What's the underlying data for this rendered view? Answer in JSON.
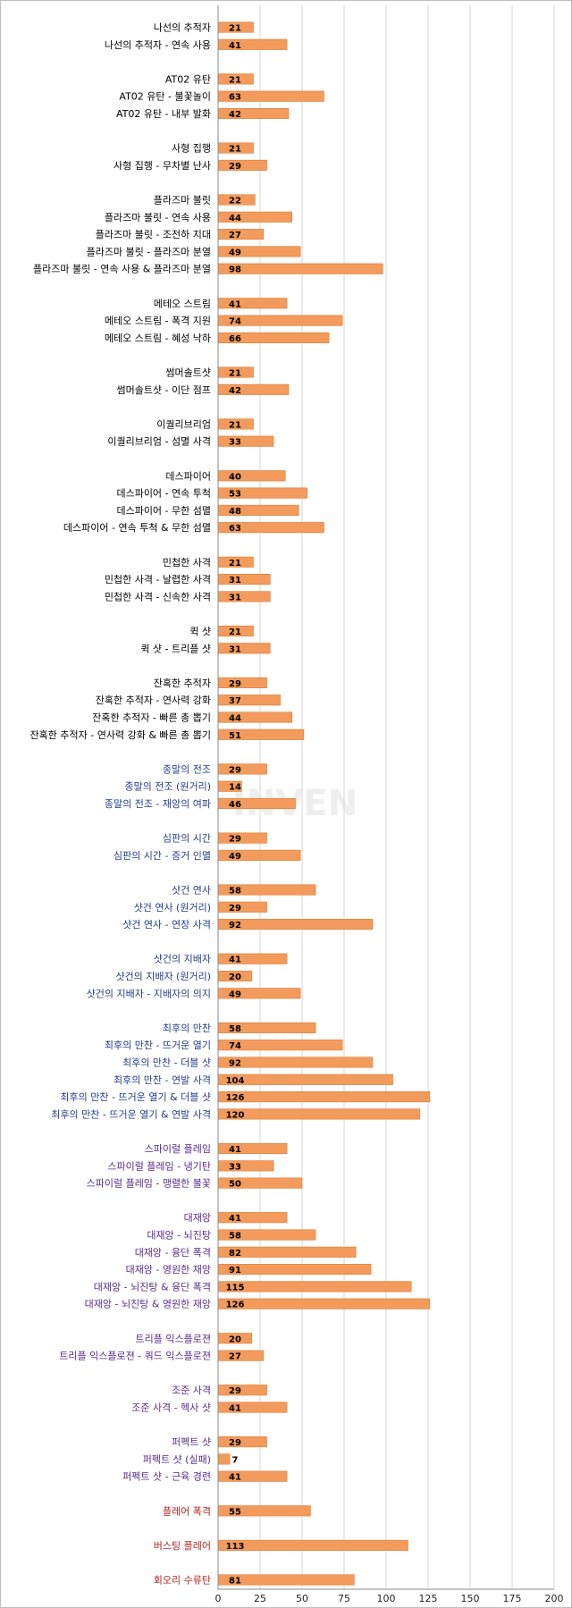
{
  "colors": {
    "bar": "#f29b5c",
    "bar_edge": "#e07a30",
    "grid": "#d4d4d4",
    "axis": "#888888",
    "label_default": "#000000",
    "label_blue": "#1f3d8a",
    "label_purple": "#5a2a8a",
    "label_red": "#b22222",
    "watermark": "#eeeeee"
  },
  "watermark": "INVEN",
  "chart_data": {
    "type": "bar",
    "orientation": "horizontal",
    "xlim": [
      0,
      200
    ],
    "xticks": [
      "0",
      "25",
      "50",
      "75",
      "100",
      "125",
      "150",
      "175",
      "200"
    ],
    "grid": true,
    "groups": [
      {
        "color": "default",
        "items": [
          {
            "label": "나선의 추적자",
            "value": 21
          },
          {
            "label": "나선의 추적자 - 연속 사용",
            "value": 41
          }
        ]
      },
      {
        "color": "default",
        "items": [
          {
            "label": "AT02 유탄",
            "value": 21
          },
          {
            "label": "AT02 유탄 - 불꽃놀이",
            "value": 63
          },
          {
            "label": "AT02 유탄 - 내부 발화",
            "value": 42
          }
        ]
      },
      {
        "color": "default",
        "items": [
          {
            "label": "사형 집행",
            "value": 21
          },
          {
            "label": "사형 집행 - 무차별 난사",
            "value": 29
          }
        ]
      },
      {
        "color": "default",
        "items": [
          {
            "label": "플라즈마 불릿",
            "value": 22
          },
          {
            "label": "플라즈마 불릿 - 연속 사용",
            "value": 44
          },
          {
            "label": "플라즈마 불릿 - 조전하 지대",
            "value": 27
          },
          {
            "label": "플라즈마 불릿 - 플라즈마 분열",
            "value": 49
          },
          {
            "label": "플라즈마 불릿 - 연속 사용 & 플라즈마 분열",
            "value": 98
          }
        ]
      },
      {
        "color": "default",
        "items": [
          {
            "label": "메테오 스트림",
            "value": 41
          },
          {
            "label": "메테오 스트림 - 폭격 지원",
            "value": 74
          },
          {
            "label": "메테오 스트림 - 혜성 낙하",
            "value": 66
          }
        ]
      },
      {
        "color": "default",
        "items": [
          {
            "label": "썸머솔트샷",
            "value": 21
          },
          {
            "label": "썸머솔트샷 - 이단 점프",
            "value": 42
          }
        ]
      },
      {
        "color": "default",
        "items": [
          {
            "label": "이퀄리브리엄",
            "value": 21
          },
          {
            "label": "이퀄리브리엄 - 섬멸 사격",
            "value": 33
          }
        ]
      },
      {
        "color": "default",
        "items": [
          {
            "label": "데스파이어",
            "value": 40
          },
          {
            "label": "데스파이어 - 연속 투척",
            "value": 53
          },
          {
            "label": "데스파이어 - 무한 섬멸",
            "value": 48
          },
          {
            "label": "데스파이어 - 연속 투척 & 무한 섬멸",
            "value": 63
          }
        ]
      },
      {
        "color": "default",
        "items": [
          {
            "label": "민첩한 사격",
            "value": 21
          },
          {
            "label": "민첩한 사격 - 날렵한 사격",
            "value": 31
          },
          {
            "label": "민첩한 사격 - 신속한 사격",
            "value": 31
          }
        ]
      },
      {
        "color": "default",
        "items": [
          {
            "label": "퀵 샷",
            "value": 21
          },
          {
            "label": "퀵 샷 - 트리플 샷",
            "value": 31
          }
        ]
      },
      {
        "color": "default",
        "items": [
          {
            "label": "잔혹한 추적자",
            "value": 29
          },
          {
            "label": "잔혹한 추적자 - 연사력 강화",
            "value": 37
          },
          {
            "label": "잔혹한 추적자 - 빠른 총 뽑기",
            "value": 44
          },
          {
            "label": "잔혹한 추적자 - 연사력 강화 & 빠른 총 뽑기",
            "value": 51
          }
        ]
      },
      {
        "color": "blue",
        "items": [
          {
            "label": "종말의 전조",
            "value": 29
          },
          {
            "label": "종말의 전조 (원거리)",
            "value": 14
          },
          {
            "label": "종말의 전조 - 재앙의 여파",
            "value": 46
          }
        ]
      },
      {
        "color": "blue",
        "items": [
          {
            "label": "심판의 시간",
            "value": 29
          },
          {
            "label": "심판의 시간 - 증거 인멸",
            "value": 49
          }
        ]
      },
      {
        "color": "blue",
        "items": [
          {
            "label": "샷건 연사",
            "value": 58
          },
          {
            "label": "샷건 연사 (원거리)",
            "value": 29
          },
          {
            "label": "샷건 연사 - 연장 사격",
            "value": 92
          }
        ]
      },
      {
        "color": "blue",
        "items": [
          {
            "label": "샷건의 지배자",
            "value": 41
          },
          {
            "label": "샷건의 지배자 (원거리)",
            "value": 20
          },
          {
            "label": "샷건의 지배자 - 지배자의 의지",
            "value": 49
          }
        ]
      },
      {
        "color": "blue",
        "items": [
          {
            "label": "최후의 만찬",
            "value": 58
          },
          {
            "label": "최후의 만찬 - 뜨거운 열기",
            "value": 74
          },
          {
            "label": "최후의 만찬 - 더블 샷",
            "value": 92
          },
          {
            "label": "최후의 만찬 - 연발 사격",
            "value": 104
          },
          {
            "label": "최후의 만찬 - 뜨거운 열기 & 더블 샷",
            "value": 126
          },
          {
            "label": "최후의 만찬 - 뜨거운 열기 & 연발 사격",
            "value": 120
          }
        ]
      },
      {
        "color": "purple",
        "items": [
          {
            "label": "스파이럴 플레임",
            "value": 41
          },
          {
            "label": "스파이럴 플레임 - 냉기탄",
            "value": 33
          },
          {
            "label": "스파이럴 플레임 - 맹렬한 불꽃",
            "value": 50
          }
        ]
      },
      {
        "color": "purple",
        "items": [
          {
            "label": "대재앙",
            "value": 41
          },
          {
            "label": "대재앙 - 뇌진탕",
            "value": 58
          },
          {
            "label": "대재앙 - 융단 폭격",
            "value": 82
          },
          {
            "label": "대재앙 - 영원한 재앙",
            "value": 91
          },
          {
            "label": "대재앙 - 뇌진탕 & 융단 폭격",
            "value": 115
          },
          {
            "label": "대재앙 - 뇌진탕 & 영원한 재앙",
            "value": 126
          }
        ]
      },
      {
        "color": "purple",
        "items": [
          {
            "label": "트리플 익스플로젼",
            "value": 20
          },
          {
            "label": "트리플 익스플로젼 - 쿼드 익스플로젼",
            "value": 27
          }
        ]
      },
      {
        "color": "purple",
        "items": [
          {
            "label": "조준 사격",
            "value": 29
          },
          {
            "label": "조준 사격 - 헥사 샷",
            "value": 41
          }
        ]
      },
      {
        "color": "purple",
        "items": [
          {
            "label": "퍼펙트 샷",
            "value": 29
          },
          {
            "label": "퍼펙트 샷 (실패)",
            "value": 7
          },
          {
            "label": "퍼펙트 샷 - 근육 경련",
            "value": 41
          }
        ]
      },
      {
        "color": "red",
        "items": [
          {
            "label": "플레어 폭격",
            "value": 55
          }
        ]
      },
      {
        "color": "red",
        "items": [
          {
            "label": "버스팅 플레어",
            "value": 113
          }
        ]
      },
      {
        "color": "red",
        "items": [
          {
            "label": "회오리 수류탄",
            "value": 81
          }
        ]
      }
    ]
  }
}
